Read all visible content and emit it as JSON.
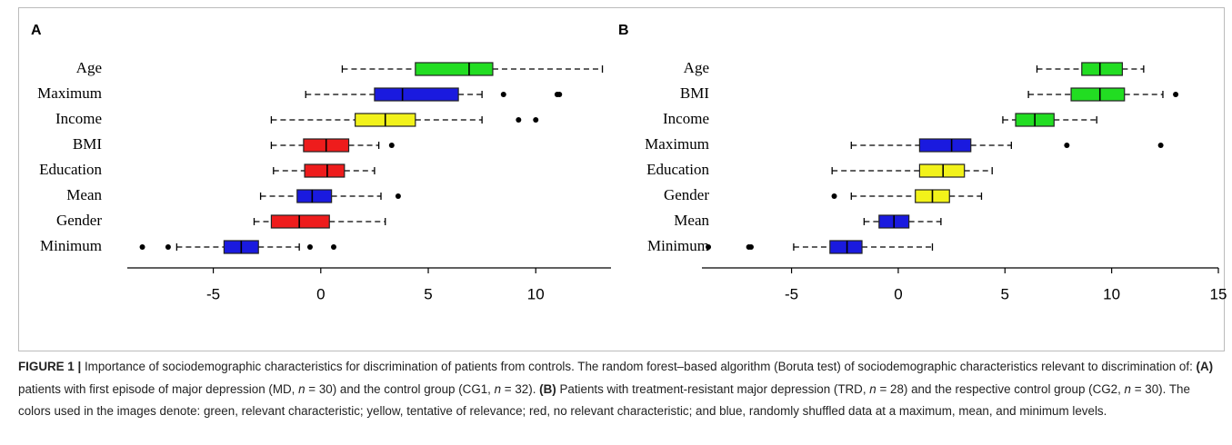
{
  "chart_data": [
    {
      "type": "box",
      "panel": "A",
      "categories": [
        "Age",
        "Maximum",
        "Income",
        "BMI",
        "Education",
        "Mean",
        "Gender",
        "Minimum"
      ],
      "boxes": [
        {
          "color": "#22dd22",
          "whislo": 1.0,
          "q1": 4.4,
          "med": 6.9,
          "q3": 8.0,
          "whishi": 13.1,
          "fliers": []
        },
        {
          "color": "#1a1adf",
          "whislo": -0.7,
          "q1": 2.5,
          "med": 3.8,
          "q3": 6.4,
          "whishi": 7.5,
          "fliers": [
            8.5,
            11.0,
            11.1
          ]
        },
        {
          "color": "#f2f21a",
          "whislo": -2.3,
          "q1": 1.6,
          "med": 3.0,
          "q3": 4.4,
          "whishi": 7.5,
          "fliers": [
            9.2,
            10.0
          ]
        },
        {
          "color": "#ee1c1c",
          "whislo": -2.3,
          "q1": -0.8,
          "med": 0.25,
          "q3": 1.3,
          "whishi": 2.7,
          "fliers": [
            3.3
          ]
        },
        {
          "color": "#ee1c1c",
          "whislo": -2.2,
          "q1": -0.75,
          "med": 0.3,
          "q3": 1.1,
          "whishi": 2.5,
          "fliers": []
        },
        {
          "color": "#1a1adf",
          "whislo": -2.8,
          "q1": -1.1,
          "med": -0.4,
          "q3": 0.5,
          "whishi": 2.8,
          "fliers": [
            3.6
          ]
        },
        {
          "color": "#ee1c1c",
          "whislo": -3.1,
          "q1": -2.3,
          "med": -1.0,
          "q3": 0.4,
          "whishi": 3.0,
          "fliers": []
        },
        {
          "color": "#1a1adf",
          "whislo": -6.7,
          "q1": -4.5,
          "med": -3.7,
          "q3": -2.9,
          "whishi": -1.0,
          "fliers": [
            -8.3,
            -7.1,
            -0.5,
            0.6
          ]
        }
      ],
      "xlim": [
        -9,
        13.5
      ],
      "xticks": [
        -5,
        0,
        5,
        10
      ]
    },
    {
      "type": "box",
      "panel": "B",
      "categories": [
        "Age",
        "BMI",
        "Income",
        "Maximum",
        "Education",
        "Gender",
        "Mean",
        "Minimum"
      ],
      "boxes": [
        {
          "color": "#22dd22",
          "whislo": 6.5,
          "q1": 8.6,
          "med": 9.45,
          "q3": 10.5,
          "whishi": 11.5,
          "fliers": []
        },
        {
          "color": "#22dd22",
          "whislo": 6.1,
          "q1": 8.1,
          "med": 9.45,
          "q3": 10.6,
          "whishi": 12.4,
          "fliers": [
            13.0
          ]
        },
        {
          "color": "#22dd22",
          "whislo": 4.9,
          "q1": 5.5,
          "med": 6.4,
          "q3": 7.3,
          "whishi": 9.3,
          "fliers": []
        },
        {
          "color": "#1a1adf",
          "whislo": -2.2,
          "q1": 1.0,
          "med": 2.5,
          "q3": 3.4,
          "whishi": 5.3,
          "fliers": [
            7.9,
            12.3
          ]
        },
        {
          "color": "#f2f21a",
          "whislo": -3.1,
          "q1": 1.0,
          "med": 2.1,
          "q3": 3.1,
          "whishi": 4.4,
          "fliers": []
        },
        {
          "color": "#f2f21a",
          "whislo": -2.2,
          "q1": 0.8,
          "med": 1.6,
          "q3": 2.4,
          "whishi": 3.9,
          "fliers": [
            -3.0
          ]
        },
        {
          "color": "#1a1adf",
          "whislo": -1.6,
          "q1": -0.9,
          "med": -0.2,
          "q3": 0.5,
          "whishi": 2.0,
          "fliers": []
        },
        {
          "color": "#1a1adf",
          "whislo": -4.9,
          "q1": -3.2,
          "med": -2.4,
          "q3": -1.7,
          "whishi": 1.6,
          "fliers": [
            -8.9,
            -7.0,
            -6.9
          ]
        }
      ],
      "xlim": [
        -9.2,
        15
      ],
      "xticks": [
        -5,
        0,
        5,
        10,
        15
      ]
    }
  ],
  "caption": [
    "FIGURE 1 |",
    " Importance of sociodemographic characteristics for discrimination of patients from controls. The random forest–based algorithm (Boruta test) of sociodemographic characteristics relevant to discrimination of: ",
    "(A)",
    " patients with first episode of major depression (MD, ",
    "n",
    " = 30) and the control group (CG1, ",
    "n",
    " = 32). ",
    "(B)",
    " Patients with treatment-resistant major depression (TRD, ",
    "n",
    " = 28) and the respective control group (CG2, ",
    "n",
    " = 30). The colors used in the images denote: green, relevant characteristic; yellow, tentative of relevance; red, no relevant characteristic; and blue, randomly shuffled data at a maximum, mean, and minimum levels."
  ]
}
